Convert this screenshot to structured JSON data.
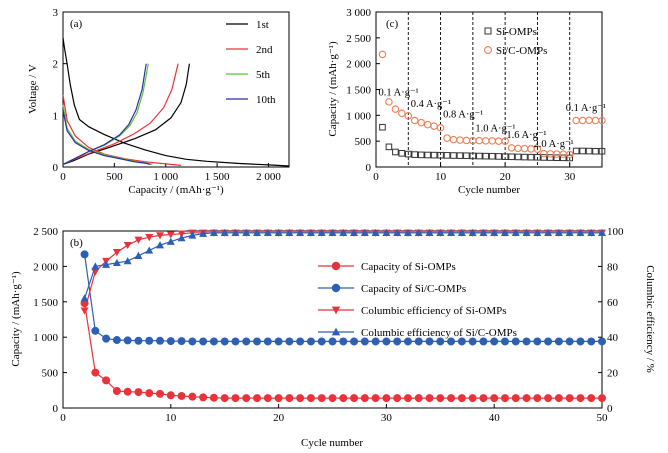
{
  "chart_data": [
    {
      "panel_label": "(a)",
      "type": "line",
      "xlabel": "Capacity / (mAh·g⁻¹)",
      "ylabel": "Voltage / V",
      "xlim": [
        0,
        2200
      ],
      "ylim": [
        0,
        3
      ],
      "xticks": [
        0,
        500,
        1000,
        1500,
        2000
      ],
      "yticks": [
        0,
        1,
        2,
        3
      ],
      "legend_position": "top-right",
      "series": [
        {
          "name": "1st",
          "color": "#000000",
          "discharge": [
            [
              0,
              2.5
            ],
            [
              15,
              2.3
            ],
            [
              40,
              2.0
            ],
            [
              70,
              1.6
            ],
            [
              110,
              1.2
            ],
            [
              160,
              0.92
            ],
            [
              250,
              0.78
            ],
            [
              400,
              0.63
            ],
            [
              600,
              0.46
            ],
            [
              800,
              0.33
            ],
            [
              1000,
              0.22
            ],
            [
              1200,
              0.15
            ],
            [
              1400,
              0.11
            ],
            [
              1700,
              0.07
            ],
            [
              2000,
              0.04
            ],
            [
              2200,
              0.02
            ]
          ],
          "charge": [
            [
              0,
              0.05
            ],
            [
              100,
              0.12
            ],
            [
              250,
              0.25
            ],
            [
              450,
              0.38
            ],
            [
              700,
              0.55
            ],
            [
              900,
              0.72
            ],
            [
              1050,
              0.95
            ],
            [
              1150,
              1.25
            ],
            [
              1200,
              1.6
            ],
            [
              1230,
              2.0
            ]
          ]
        },
        {
          "name": "2nd",
          "color": "#e8333a",
          "discharge": [
            [
              0,
              1.4
            ],
            [
              40,
              0.9
            ],
            [
              120,
              0.6
            ],
            [
              250,
              0.38
            ],
            [
              400,
              0.25
            ],
            [
              600,
              0.16
            ],
            [
              800,
              0.1
            ],
            [
              1000,
              0.06
            ],
            [
              1150,
              0.03
            ]
          ],
          "charge": [
            [
              0,
              0.05
            ],
            [
              100,
              0.14
            ],
            [
              300,
              0.3
            ],
            [
              500,
              0.45
            ],
            [
              700,
              0.65
            ],
            [
              850,
              0.85
            ],
            [
              980,
              1.15
            ],
            [
              1060,
              1.5
            ],
            [
              1120,
              2.0
            ]
          ]
        },
        {
          "name": "5th",
          "color": "#59c23b",
          "discharge": [
            [
              0,
              1.2
            ],
            [
              40,
              0.75
            ],
            [
              120,
              0.5
            ],
            [
              250,
              0.34
            ],
            [
              400,
              0.24
            ],
            [
              550,
              0.17
            ],
            [
              700,
              0.11
            ],
            [
              820,
              0.07
            ],
            [
              870,
              0.05
            ]
          ],
          "charge": [
            [
              0,
              0.05
            ],
            [
              100,
              0.15
            ],
            [
              250,
              0.3
            ],
            [
              400,
              0.42
            ],
            [
              550,
              0.6
            ],
            [
              650,
              0.8
            ],
            [
              720,
              1.05
            ],
            [
              780,
              1.45
            ],
            [
              830,
              2.0
            ]
          ]
        },
        {
          "name": "10th",
          "color": "#2a2fa0",
          "discharge": [
            [
              0,
              1.1
            ],
            [
              40,
              0.7
            ],
            [
              120,
              0.47
            ],
            [
              250,
              0.32
            ],
            [
              400,
              0.22
            ],
            [
              550,
              0.16
            ],
            [
              700,
              0.1
            ],
            [
              810,
              0.07
            ],
            [
              850,
              0.05
            ]
          ],
          "charge": [
            [
              0,
              0.05
            ],
            [
              100,
              0.15
            ],
            [
              250,
              0.3
            ],
            [
              400,
              0.43
            ],
            [
              550,
              0.62
            ],
            [
              640,
              0.82
            ],
            [
              710,
              1.1
            ],
            [
              770,
              1.5
            ],
            [
              810,
              2.0
            ]
          ]
        }
      ]
    },
    {
      "panel_label": "(c)",
      "type": "scatter",
      "xlabel": "Cycle number",
      "ylabel": "Capacity / (mAh·g⁻¹)",
      "xlim": [
        0,
        35
      ],
      "ylim": [
        0,
        3000
      ],
      "xticks": [
        0,
        10,
        20,
        30
      ],
      "yticks": [
        0,
        500,
        1000,
        1500,
        2000,
        2500,
        3000
      ],
      "legend_position": "top-right",
      "dividers": [
        5,
        10,
        15,
        20,
        25,
        30
      ],
      "annotations": [
        {
          "text": "0.1 A·g⁻¹",
          "x": 3.5,
          "y": 1380
        },
        {
          "text": "0.4 A·g⁻¹",
          "x": 8.5,
          "y": 1160
        },
        {
          "text": "0.8 A·g⁻¹",
          "x": 13.5,
          "y": 960
        },
        {
          "text": "1.0 A·g⁻¹",
          "x": 18.5,
          "y": 690
        },
        {
          "text": "1.6 A·g⁻¹",
          "x": 23.3,
          "y": 560
        },
        {
          "text": "2.0 A·g⁻¹",
          "x": 27.5,
          "y": 390
        },
        {
          "text": "0.1 A·g⁻¹",
          "x": 32.5,
          "y": 1080
        }
      ],
      "series": [
        {
          "name": "Si-OMPs",
          "marker": "open-square",
          "color": "#333333",
          "x": [
            1,
            2,
            3,
            4,
            5,
            6,
            7,
            8,
            9,
            10,
            11,
            12,
            13,
            14,
            15,
            16,
            17,
            18,
            19,
            20,
            21,
            22,
            23,
            24,
            25,
            26,
            27,
            28,
            29,
            30,
            31,
            32,
            33,
            34,
            35
          ],
          "values": [
            770,
            390,
            290,
            265,
            250,
            240,
            235,
            232,
            230,
            228,
            225,
            222,
            220,
            218,
            215,
            212,
            210,
            208,
            205,
            200,
            198,
            195,
            192,
            190,
            188,
            185,
            183,
            180,
            178,
            175,
            310,
            310,
            308,
            305,
            305
          ]
        },
        {
          "name": "Si/C-OMPs",
          "marker": "open-circle",
          "color": "#f07d55",
          "x": [
            1,
            2,
            3,
            4,
            5,
            6,
            7,
            8,
            9,
            10,
            11,
            12,
            13,
            14,
            15,
            16,
            17,
            18,
            19,
            20,
            21,
            22,
            23,
            24,
            25,
            26,
            27,
            28,
            29,
            30,
            31,
            32,
            33,
            34,
            35
          ],
          "values": [
            2180,
            1260,
            1120,
            1040,
            990,
            900,
            860,
            820,
            790,
            760,
            560,
            530,
            520,
            515,
            510,
            510,
            505,
            505,
            500,
            500,
            370,
            360,
            355,
            350,
            345,
            260,
            255,
            250,
            248,
            245,
            900,
            900,
            905,
            900,
            900
          ]
        }
      ]
    },
    {
      "panel_label": "(b)",
      "type": "line",
      "xlabel": "Cycle number",
      "ylabel": "Capacity / (mAh·g⁻¹)",
      "y2label": "Columbic efficiency / %",
      "xlim": [
        0,
        50
      ],
      "ylim": [
        0,
        2500
      ],
      "y2lim": [
        0,
        100
      ],
      "xticks": [
        0,
        10,
        20,
        30,
        40,
        50
      ],
      "yticks": [
        0,
        500,
        1000,
        1500,
        2000,
        2500
      ],
      "y2ticks": [
        0,
        20,
        40,
        60,
        80,
        100
      ],
      "legend_position": "center-right",
      "x": [
        2,
        3,
        4,
        5,
        6,
        7,
        8,
        9,
        10,
        11,
        12,
        13,
        14,
        15,
        16,
        17,
        18,
        19,
        20,
        21,
        22,
        23,
        24,
        25,
        26,
        27,
        28,
        29,
        30,
        31,
        32,
        33,
        34,
        35,
        36,
        37,
        38,
        39,
        40,
        41,
        42,
        43,
        44,
        45,
        46,
        47,
        48,
        49,
        50
      ],
      "series": [
        {
          "name": "Capacity of Si-OMPs",
          "marker": "circle",
          "color": "#e8333a",
          "axis": "left",
          "values": [
            1480,
            500,
            390,
            240,
            230,
            225,
            210,
            200,
            180,
            170,
            160,
            150,
            145,
            140,
            140,
            140,
            140,
            140,
            140,
            140,
            140,
            140,
            140,
            140,
            140,
            140,
            140,
            140,
            140,
            140,
            140,
            140,
            140,
            140,
            140,
            140,
            140,
            140,
            140,
            140,
            140,
            140,
            140,
            140,
            140,
            140,
            140,
            140,
            140
          ]
        },
        {
          "name": "Capacity of Si/C-OMPs",
          "marker": "circle",
          "color": "#2d5fb5",
          "axis": "left",
          "values": [
            2170,
            1090,
            980,
            960,
            955,
            950,
            950,
            950,
            945,
            945,
            940,
            940,
            940,
            940,
            940,
            940,
            940,
            940,
            940,
            940,
            940,
            940,
            940,
            940,
            940,
            940,
            940,
            940,
            940,
            940,
            940,
            940,
            940,
            940,
            940,
            940,
            940,
            940,
            940,
            940,
            940,
            940,
            940,
            940,
            940,
            940,
            940,
            940,
            940
          ]
        },
        {
          "name": "Columbic efficiency of Si-OMPs",
          "marker": "triangle-down",
          "color": "#e8333a",
          "axis": "right",
          "values": [
            55,
            77,
            83,
            88,
            92,
            95,
            96.5,
            97.5,
            98,
            98.5,
            99,
            99,
            99,
            99,
            99,
            99,
            99,
            99,
            99,
            99,
            99,
            99,
            99,
            99,
            99,
            99,
            99,
            99,
            99,
            99,
            99,
            99,
            99,
            99,
            99,
            99,
            99,
            99,
            99,
            99,
            99,
            99,
            99,
            99,
            99,
            99,
            99,
            99,
            99
          ]
        },
        {
          "name": "Columbic efficiency of Si/C-OMPs",
          "marker": "triangle-up",
          "color": "#2d5fb5",
          "axis": "right",
          "values": [
            62,
            80,
            81,
            82,
            83,
            86,
            89,
            92,
            94,
            96,
            97.5,
            98.5,
            99,
            99,
            99,
            99,
            99,
            99,
            99,
            99,
            99,
            99,
            99,
            99,
            99,
            99,
            99,
            99,
            99,
            99,
            99,
            99,
            99,
            99,
            99,
            99,
            99,
            99,
            99,
            99,
            99,
            99,
            99,
            99,
            99,
            99,
            99,
            99,
            99
          ]
        }
      ]
    }
  ]
}
